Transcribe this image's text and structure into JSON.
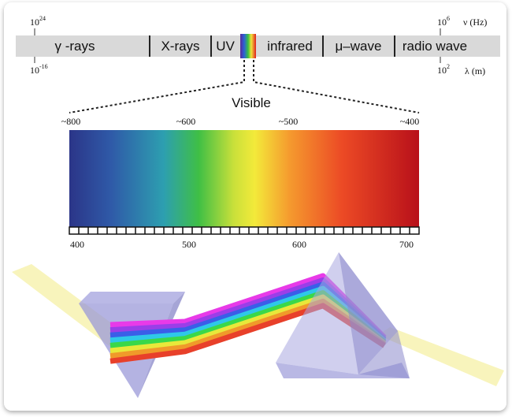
{
  "frequency_axis": {
    "left": {
      "base": "10",
      "exponent": "24"
    },
    "right": {
      "base": "10",
      "exponent": "6"
    },
    "unit": "ν (Hz)"
  },
  "bands": [
    "γ -rays",
    "X-rays",
    "UV",
    "infrared",
    "μ–wave",
    "radio wave"
  ],
  "wavelength_axis": {
    "left": {
      "base": "10",
      "exponent": "-16"
    },
    "right": {
      "base": "10",
      "exponent": "2"
    },
    "unit": "λ (m)"
  },
  "visible_label": "Visible",
  "top_scale": [
    "~800",
    "~600",
    "~500",
    "~400"
  ],
  "bottom_scale": [
    "400",
    "500",
    "600",
    "700"
  ]
}
